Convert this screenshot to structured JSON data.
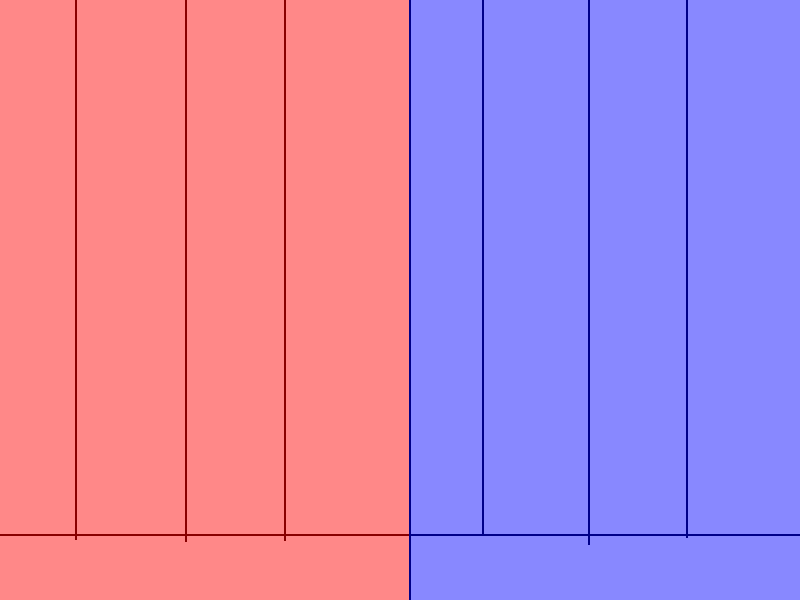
{
  "colors": {
    "red_zone_fill": "#ff8888",
    "red_zone_lines": "#880000",
    "blue_zone_fill": "#8888ff",
    "blue_zone_lines": "#000088"
  },
  "zones": [
    {
      "side": "left",
      "team": "red",
      "post_count": 3
    },
    {
      "side": "right",
      "team": "blue",
      "post_count": 3
    }
  ]
}
